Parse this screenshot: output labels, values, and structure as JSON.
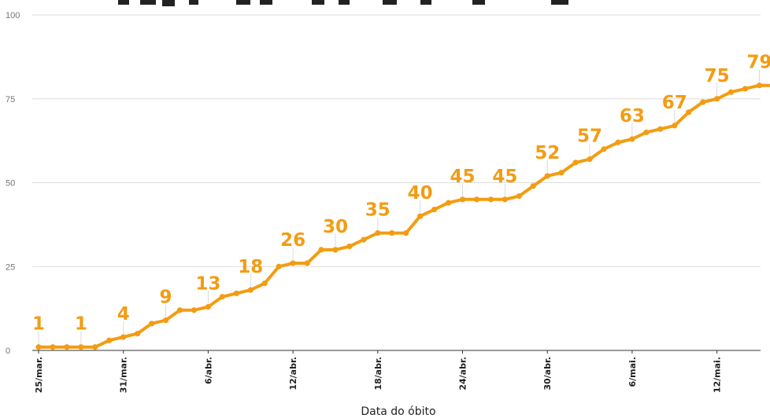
{
  "chart_data": {
    "type": "line",
    "title": "",
    "xlabel": "Data do óbito",
    "ylabel": "",
    "ylim": [
      0,
      100
    ],
    "yticks": [
      0,
      25,
      50,
      75,
      100
    ],
    "grid": true,
    "x": [
      "25/mar.",
      "26/mar.",
      "27/mar.",
      "28/mar.",
      "29/mar.",
      "30/mar.",
      "31/mar.",
      "1/abr.",
      "2/abr.",
      "3/abr.",
      "4/abr.",
      "5/abr.",
      "6/abr.",
      "7/abr.",
      "8/abr.",
      "9/abr.",
      "10/abr.",
      "11/abr.",
      "12/abr.",
      "13/abr.",
      "14/abr.",
      "15/abr.",
      "16/abr.",
      "17/abr.",
      "18/abr.",
      "19/abr.",
      "20/abr.",
      "21/abr.",
      "22/abr.",
      "23/abr.",
      "24/abr.",
      "25/abr.",
      "26/abr.",
      "27/abr.",
      "28/abr.",
      "29/abr.",
      "30/abr.",
      "1/mai.",
      "2/mai.",
      "3/mai.",
      "4/mai.",
      "5/mai.",
      "6/mai.",
      "7/mai.",
      "8/mai.",
      "9/mai.",
      "10/mai.",
      "11/mai.",
      "12/mai.",
      "13/mai.",
      "14/mai.",
      "15/mai.",
      "16/mai."
    ],
    "xtick_labels": [
      "25/mar.",
      "31/mar.",
      "6/abr.",
      "12/abr.",
      "18/abr.",
      "24/abr.",
      "30/abr.",
      "6/mai.",
      "12/mai."
    ],
    "series": [
      {
        "values": [
          1,
          1,
          1,
          1,
          1,
          3,
          4,
          5,
          8,
          9,
          12,
          12,
          13,
          16,
          17,
          18,
          20,
          25,
          26,
          26,
          30,
          30,
          31,
          33,
          35,
          35,
          35,
          40,
          42,
          44,
          45,
          45,
          45,
          45,
          46,
          49,
          52,
          53,
          56,
          57,
          60,
          62,
          63,
          65,
          66,
          67,
          71,
          74,
          75,
          77,
          78,
          79,
          79
        ],
        "color": "#f39c12"
      }
    ],
    "data_labels": [
      {
        "x": "25/mar.",
        "text": "1"
      },
      {
        "x": "28/mar.",
        "text": "1"
      },
      {
        "x": "31/mar.",
        "text": "4"
      },
      {
        "x": "3/abr.",
        "text": "9"
      },
      {
        "x": "6/abr.",
        "text": "13"
      },
      {
        "x": "9/abr.",
        "text": "18"
      },
      {
        "x": "12/abr.",
        "text": "26"
      },
      {
        "x": "15/abr.",
        "text": "30"
      },
      {
        "x": "18/abr.",
        "text": "35"
      },
      {
        "x": "21/abr.",
        "text": "40"
      },
      {
        "x": "24/abr.",
        "text": "45"
      },
      {
        "x": "27/abr.",
        "text": "45"
      },
      {
        "x": "30/abr.",
        "text": "52"
      },
      {
        "x": "3/mai.",
        "text": "57"
      },
      {
        "x": "6/mai.",
        "text": "63"
      },
      {
        "x": "9/mai.",
        "text": "67"
      },
      {
        "x": "12/mai.",
        "text": "75"
      },
      {
        "x": "15/mai.",
        "text": "79"
      }
    ],
    "line_color": "#f39c12",
    "label_color": "#f39c12",
    "grid_color": "#dddddd",
    "axis_color": "#333333"
  }
}
